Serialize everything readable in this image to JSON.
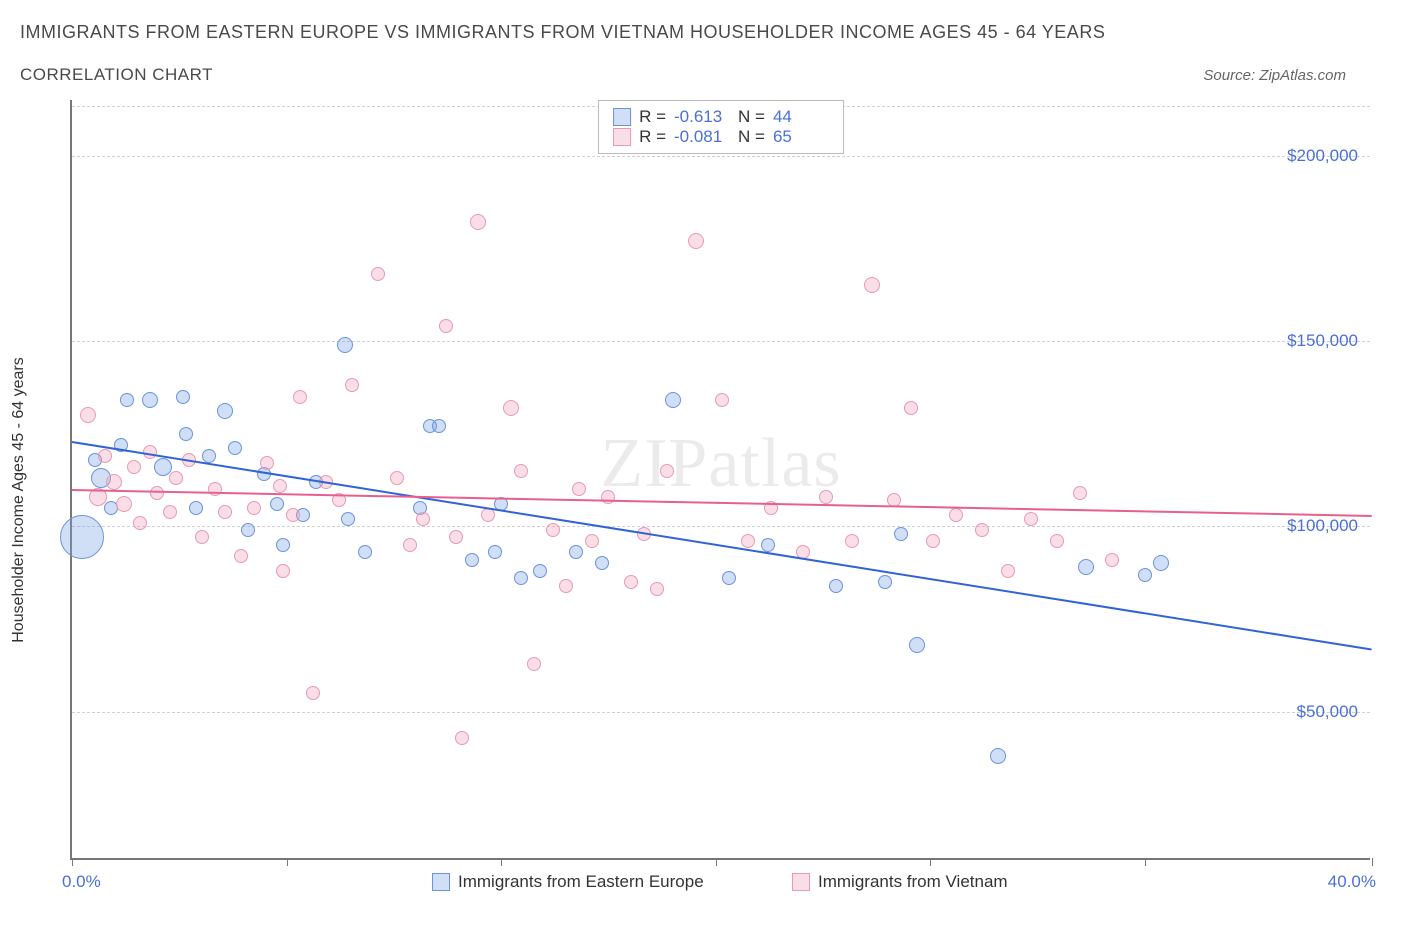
{
  "header": {
    "title": "IMMIGRANTS FROM EASTERN EUROPE VS IMMIGRANTS FROM VIETNAM HOUSEHOLDER INCOME AGES 45 - 64 YEARS",
    "subtitle": "CORRELATION CHART",
    "source_prefix": "Source: ",
    "source_name": "ZipAtlas.com"
  },
  "chart": {
    "type": "scatter",
    "ylabel": "Householder Income Ages 45 - 64 years",
    "watermark": "ZIPatlas",
    "background_color": "#ffffff",
    "grid_color": "#d0d0d0",
    "axis_color": "#777777",
    "tick_label_color": "#4a6fd8",
    "xlim": [
      0,
      40
    ],
    "ylim": [
      10000,
      215000
    ],
    "y_ticks": [
      50000,
      100000,
      150000,
      200000
    ],
    "y_tick_labels": [
      "$50,000",
      "$100,000",
      "$150,000",
      "$200,000"
    ],
    "x_ticks": [
      0,
      6.6,
      13.2,
      19.8,
      26.4,
      33,
      40
    ],
    "x_end_labels": {
      "min": "0.0%",
      "max": "40.0%"
    },
    "series": [
      {
        "key": "eastern_europe",
        "label": "Immigrants from Eastern Europe",
        "color_fill": "rgba(120,160,230,0.35)",
        "color_stroke": "#6a93db",
        "trend_color": "#2f63d6",
        "R": "-0.613",
        "N": "44",
        "trend": {
          "x1": 0,
          "y1": 123000,
          "x2": 40,
          "y2": 67000
        },
        "points": [
          {
            "x": 0.3,
            "y": 97000,
            "r": 22
          },
          {
            "x": 0.7,
            "y": 118000,
            "r": 7
          },
          {
            "x": 0.9,
            "y": 113000,
            "r": 10
          },
          {
            "x": 1.2,
            "y": 105000,
            "r": 7
          },
          {
            "x": 1.5,
            "y": 122000,
            "r": 7
          },
          {
            "x": 1.7,
            "y": 134000,
            "r": 7
          },
          {
            "x": 2.4,
            "y": 134000,
            "r": 8
          },
          {
            "x": 2.8,
            "y": 116000,
            "r": 9
          },
          {
            "x": 3.4,
            "y": 135000,
            "r": 7
          },
          {
            "x": 3.5,
            "y": 125000,
            "r": 7
          },
          {
            "x": 3.8,
            "y": 105000,
            "r": 7
          },
          {
            "x": 4.2,
            "y": 119000,
            "r": 7
          },
          {
            "x": 4.7,
            "y": 131000,
            "r": 8
          },
          {
            "x": 5.0,
            "y": 121000,
            "r": 7
          },
          {
            "x": 5.4,
            "y": 99000,
            "r": 7
          },
          {
            "x": 5.9,
            "y": 114000,
            "r": 7
          },
          {
            "x": 6.3,
            "y": 106000,
            "r": 7
          },
          {
            "x": 6.5,
            "y": 95000,
            "r": 7
          },
          {
            "x": 7.1,
            "y": 103000,
            "r": 7
          },
          {
            "x": 7.5,
            "y": 112000,
            "r": 7
          },
          {
            "x": 8.4,
            "y": 149000,
            "r": 8
          },
          {
            "x": 8.5,
            "y": 102000,
            "r": 7
          },
          {
            "x": 9.0,
            "y": 93000,
            "r": 7
          },
          {
            "x": 10.7,
            "y": 105000,
            "r": 7
          },
          {
            "x": 11.0,
            "y": 127000,
            "r": 7
          },
          {
            "x": 11.3,
            "y": 127000,
            "r": 7
          },
          {
            "x": 12.3,
            "y": 91000,
            "r": 7
          },
          {
            "x": 13.0,
            "y": 93000,
            "r": 7
          },
          {
            "x": 13.2,
            "y": 106000,
            "r": 7
          },
          {
            "x": 13.8,
            "y": 86000,
            "r": 7
          },
          {
            "x": 14.4,
            "y": 88000,
            "r": 7
          },
          {
            "x": 15.5,
            "y": 93000,
            "r": 7
          },
          {
            "x": 16.3,
            "y": 90000,
            "r": 7
          },
          {
            "x": 18.5,
            "y": 134000,
            "r": 8
          },
          {
            "x": 20.2,
            "y": 86000,
            "r": 7
          },
          {
            "x": 21.4,
            "y": 95000,
            "r": 7
          },
          {
            "x": 23.5,
            "y": 84000,
            "r": 7
          },
          {
            "x": 25.0,
            "y": 85000,
            "r": 7
          },
          {
            "x": 26.0,
            "y": 68000,
            "r": 8
          },
          {
            "x": 28.5,
            "y": 38000,
            "r": 8
          },
          {
            "x": 31.2,
            "y": 89000,
            "r": 8
          },
          {
            "x": 33.5,
            "y": 90000,
            "r": 8
          },
          {
            "x": 33.0,
            "y": 87000,
            "r": 7
          },
          {
            "x": 25.5,
            "y": 98000,
            "r": 7
          }
        ]
      },
      {
        "key": "vietnam",
        "label": "Immigrants from Vietnam",
        "color_fill": "rgba(240,160,185,0.35)",
        "color_stroke": "#e89ab0",
        "trend_color": "#e75f8f",
        "R": "-0.081",
        "N": "65",
        "trend": {
          "x1": 0,
          "y1": 110000,
          "x2": 40,
          "y2": 103000
        },
        "points": [
          {
            "x": 0.5,
            "y": 130000,
            "r": 8
          },
          {
            "x": 0.8,
            "y": 108000,
            "r": 9
          },
          {
            "x": 1.0,
            "y": 119000,
            "r": 7
          },
          {
            "x": 1.3,
            "y": 112000,
            "r": 8
          },
          {
            "x": 1.6,
            "y": 106000,
            "r": 8
          },
          {
            "x": 1.9,
            "y": 116000,
            "r": 7
          },
          {
            "x": 2.1,
            "y": 101000,
            "r": 7
          },
          {
            "x": 2.6,
            "y": 109000,
            "r": 7
          },
          {
            "x": 2.4,
            "y": 120000,
            "r": 7
          },
          {
            "x": 3.0,
            "y": 104000,
            "r": 7
          },
          {
            "x": 3.2,
            "y": 113000,
            "r": 7
          },
          {
            "x": 3.6,
            "y": 118000,
            "r": 7
          },
          {
            "x": 4.0,
            "y": 97000,
            "r": 7
          },
          {
            "x": 4.4,
            "y": 110000,
            "r": 7
          },
          {
            "x": 4.7,
            "y": 104000,
            "r": 7
          },
          {
            "x": 5.2,
            "y": 92000,
            "r": 7
          },
          {
            "x": 5.6,
            "y": 105000,
            "r": 7
          },
          {
            "x": 6.0,
            "y": 117000,
            "r": 7
          },
          {
            "x": 6.4,
            "y": 111000,
            "r": 7
          },
          {
            "x": 6.8,
            "y": 103000,
            "r": 7
          },
          {
            "x": 6.5,
            "y": 88000,
            "r": 7
          },
          {
            "x": 7.0,
            "y": 135000,
            "r": 7
          },
          {
            "x": 7.4,
            "y": 55000,
            "r": 7
          },
          {
            "x": 7.8,
            "y": 112000,
            "r": 7
          },
          {
            "x": 8.2,
            "y": 107000,
            "r": 7
          },
          {
            "x": 8.6,
            "y": 138000,
            "r": 7
          },
          {
            "x": 9.4,
            "y": 168000,
            "r": 7
          },
          {
            "x": 10.0,
            "y": 113000,
            "r": 7
          },
          {
            "x": 10.4,
            "y": 95000,
            "r": 7
          },
          {
            "x": 10.8,
            "y": 102000,
            "r": 7
          },
          {
            "x": 11.5,
            "y": 154000,
            "r": 7
          },
          {
            "x": 11.8,
            "y": 97000,
            "r": 7
          },
          {
            "x": 12.5,
            "y": 182000,
            "r": 8
          },
          {
            "x": 12.8,
            "y": 103000,
            "r": 7
          },
          {
            "x": 12.0,
            "y": 43000,
            "r": 7
          },
          {
            "x": 13.5,
            "y": 132000,
            "r": 8
          },
          {
            "x": 13.8,
            "y": 115000,
            "r": 7
          },
          {
            "x": 14.2,
            "y": 63000,
            "r": 7
          },
          {
            "x": 14.8,
            "y": 99000,
            "r": 7
          },
          {
            "x": 15.2,
            "y": 84000,
            "r": 7
          },
          {
            "x": 15.6,
            "y": 110000,
            "r": 7
          },
          {
            "x": 16.0,
            "y": 96000,
            "r": 7
          },
          {
            "x": 16.5,
            "y": 108000,
            "r": 7
          },
          {
            "x": 17.2,
            "y": 85000,
            "r": 7
          },
          {
            "x": 17.6,
            "y": 98000,
            "r": 7
          },
          {
            "x": 18.0,
            "y": 83000,
            "r": 7
          },
          {
            "x": 18.3,
            "y": 115000,
            "r": 7
          },
          {
            "x": 19.2,
            "y": 177000,
            "r": 8
          },
          {
            "x": 20.0,
            "y": 134000,
            "r": 7
          },
          {
            "x": 20.8,
            "y": 96000,
            "r": 7
          },
          {
            "x": 21.5,
            "y": 105000,
            "r": 7
          },
          {
            "x": 22.5,
            "y": 93000,
            "r": 7
          },
          {
            "x": 23.2,
            "y": 108000,
            "r": 7
          },
          {
            "x": 24.6,
            "y": 165000,
            "r": 8
          },
          {
            "x": 25.3,
            "y": 107000,
            "r": 7
          },
          {
            "x": 25.8,
            "y": 132000,
            "r": 7
          },
          {
            "x": 26.5,
            "y": 96000,
            "r": 7
          },
          {
            "x": 27.2,
            "y": 103000,
            "r": 7
          },
          {
            "x": 28.0,
            "y": 99000,
            "r": 7
          },
          {
            "x": 28.8,
            "y": 88000,
            "r": 7
          },
          {
            "x": 29.5,
            "y": 102000,
            "r": 7
          },
          {
            "x": 30.3,
            "y": 96000,
            "r": 7
          },
          {
            "x": 31.0,
            "y": 109000,
            "r": 7
          },
          {
            "x": 32.0,
            "y": 91000,
            "r": 7
          },
          {
            "x": 24.0,
            "y": 96000,
            "r": 7
          }
        ]
      }
    ]
  },
  "corr_legend_labels": {
    "R": "R =",
    "N": "N ="
  }
}
